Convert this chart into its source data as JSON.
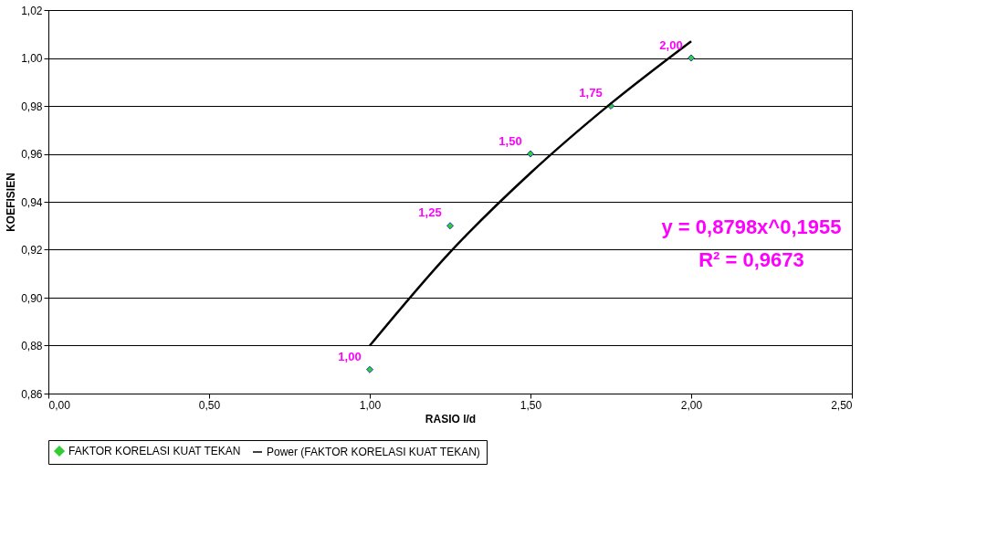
{
  "chart_data": {
    "type": "scatter",
    "xlabel": "RASIO l/d",
    "ylabel": "KOEFISIEN",
    "xlim": [
      0,
      2.5
    ],
    "xticks": [
      {
        "value": 0,
        "label": "0,00"
      },
      {
        "value": 0.5,
        "label": "0,50"
      },
      {
        "value": 1,
        "label": "1,00"
      },
      {
        "value": 1.5,
        "label": "1,50"
      },
      {
        "value": 2,
        "label": "2,00"
      },
      {
        "value": 2.5,
        "label": "2,50"
      }
    ],
    "ylim": [
      0.86,
      1.02
    ],
    "yticks": [
      {
        "value": 0.86,
        "label": "0,86"
      },
      {
        "value": 0.88,
        "label": "0,88"
      },
      {
        "value": 0.9,
        "label": "0,90"
      },
      {
        "value": 0.92,
        "label": "0,92"
      },
      {
        "value": 0.94,
        "label": "0,94"
      },
      {
        "value": 0.96,
        "label": "0,96"
      },
      {
        "value": 0.98,
        "label": "0,98"
      },
      {
        "value": 1.0,
        "label": "1,00"
      },
      {
        "value": 1.02,
        "label": "1,02"
      }
    ],
    "grid": "y",
    "legend": "bottom",
    "marker": "diamond",
    "series": [
      {
        "name": "FAKTOR KORELASI KUAT TEKAN",
        "color": "#33cc33",
        "x": [
          1,
          1.25,
          1.5,
          1.75,
          2
        ],
        "values": [
          0.87,
          0.93,
          0.96,
          0.98,
          1.0
        ]
      },
      {
        "type": "line",
        "marker": "none",
        "name": "Power (FAKTOR KORELASI KUAT TEKAN)",
        "color": "#000000",
        "x": [
          1,
          1.25,
          1.5,
          1.75,
          2
        ],
        "values": [
          0.88,
          0.919,
          0.952,
          0.981,
          1.007
        ]
      }
    ],
    "annotations": [
      {
        "text": "1,00",
        "x": 1,
        "y": 0.87
      },
      {
        "text": "1,25",
        "x": 1.25,
        "y": 0.93
      },
      {
        "text": "1,50",
        "x": 1.5,
        "y": 0.96
      },
      {
        "text": "1,75",
        "x": 1.75,
        "y": 0.98
      },
      {
        "text": "2,00",
        "x": 2,
        "y": 1.0
      },
      "y = 0,8798x^0,1955",
      "R² = 0,9673"
    ]
  }
}
